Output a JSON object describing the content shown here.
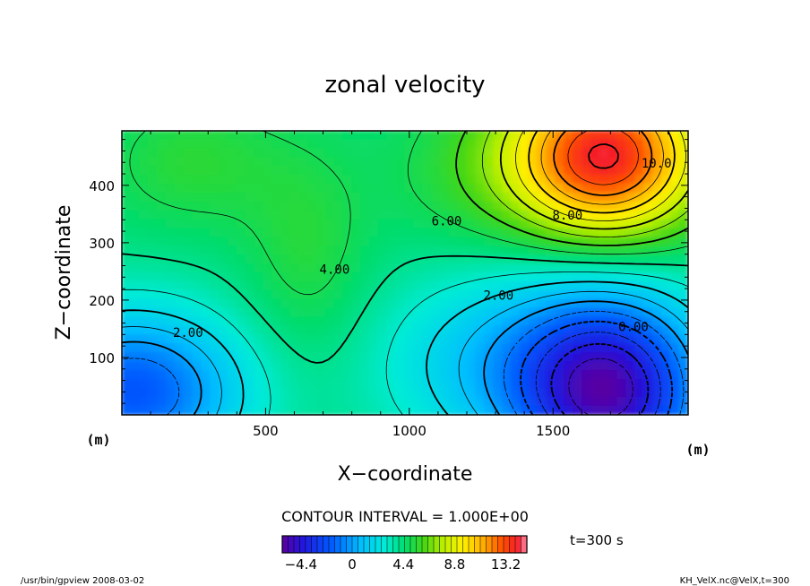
{
  "chart_data": {
    "type": "heatmap",
    "title": "zonal velocity",
    "xlabel": "X−coordinate",
    "ylabel": "Z−coordinate",
    "x_unit": "(m)",
    "y_unit": "(m)",
    "xlim": [
      0,
      1970
    ],
    "ylim": [
      0,
      495
    ],
    "x_ticks": [
      500,
      1000,
      1500
    ],
    "y_ticks": [
      100,
      200,
      300,
      400
    ],
    "contour_interval_text": "CONTOUR INTERVAL = 1.000E+00",
    "time_text": "t=300 s",
    "colorbar": {
      "min": -6.0,
      "max": 15.0,
      "ticks": [
        -4.4,
        0,
        4.4,
        8.8,
        13.2
      ],
      "tick_labels": [
        "−4.4",
        "0",
        "4.4",
        "8.8",
        "13.2"
      ]
    },
    "contour_labels": [
      {
        "text": "10.0",
        "x": 1860,
        "z": 440
      },
      {
        "text": "8.00",
        "x": 1550,
        "z": 350
      },
      {
        "text": "6.00",
        "x": 1130,
        "z": 340
      },
      {
        "text": "4.00",
        "x": 740,
        "z": 255
      },
      {
        "text": "2.00",
        "x": 1310,
        "z": 210
      },
      {
        "text": "2.00",
        "x": 230,
        "z": 145
      },
      {
        "text": "0.00",
        "x": 1780,
        "z": 155
      }
    ],
    "features": [
      {
        "kind": "max",
        "x": 1680,
        "z": 445,
        "value": 14.2
      },
      {
        "kind": "min",
        "x": 1720,
        "z": 55,
        "value": -5.2
      },
      {
        "kind": "min",
        "x": 30,
        "z": 55,
        "value": -2.6
      }
    ]
  },
  "footer": {
    "left": "/usr/bin/gpview  2008-03-02",
    "right": "KH_VelX.nc@VelX,t=300"
  },
  "colors": {
    "frame": "#000000",
    "background": "#ffffff"
  }
}
